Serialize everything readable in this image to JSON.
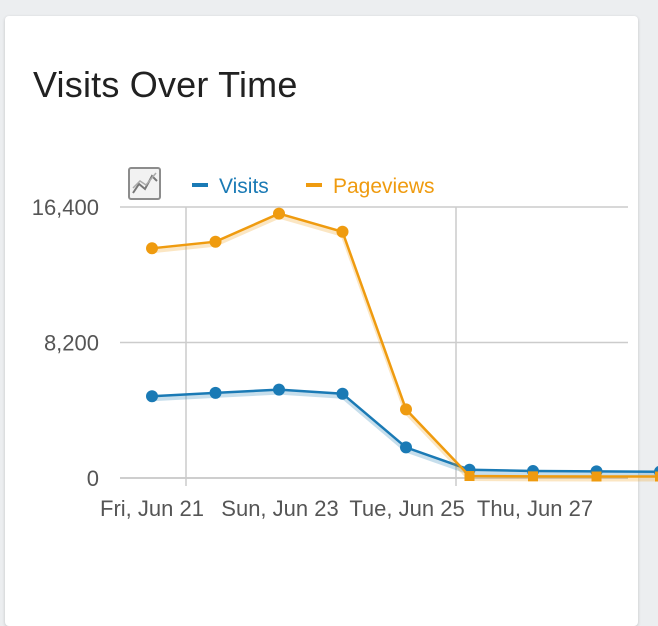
{
  "widget": {
    "title": "Visits Over Time",
    "chart_icon": "line-chart-icon"
  },
  "chart_data": {
    "type": "line",
    "x": [
      "Thu, Jun 20",
      "Fri, Jun 21",
      "Sat, Jun 22",
      "Sun, Jun 23",
      "Mon, Jun 24",
      "Tue, Jun 25",
      "Wed, Jun 26",
      "Thu, Jun 27",
      "Fri, Jun 28"
    ],
    "x_tick_labels": [
      "Fri, Jun 21",
      "Sun, Jun 23",
      "Tue, Jun 25",
      "Thu, Jun 27"
    ],
    "y_tick_labels": [
      "16,400",
      "8,200",
      "0"
    ],
    "ylim": [
      0,
      16400
    ],
    "grid": true,
    "legend_position": "top",
    "series": [
      {
        "name": "Visits",
        "color": "#1a7ab5",
        "values": [
          4950,
          5150,
          5350,
          5100,
          1850,
          500,
          420,
          400,
          380
        ]
      },
      {
        "name": "Pageviews",
        "color": "#ef9b0f",
        "values": [
          13900,
          14300,
          16000,
          14900,
          4150,
          120,
          100,
          90,
          90
        ]
      }
    ]
  }
}
